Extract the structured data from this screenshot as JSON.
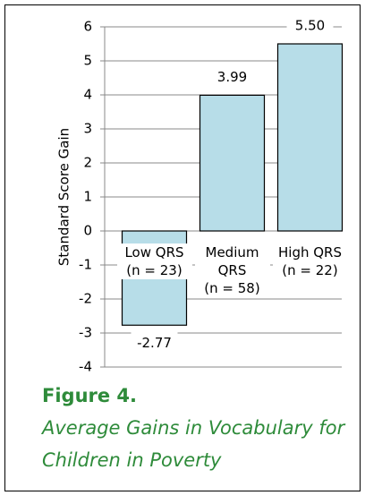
{
  "chart_data": {
    "type": "bar",
    "figure_label": "Figure 4.",
    "title": "Average Gains in Vocabulary for Children in Poverty",
    "y_label": "Standard Score Gain",
    "categories": [
      "Low QRS\n(n = 23)",
      "Medium\nQRS\n(n = 58)",
      "High QRS\n(n = 22)"
    ],
    "values": [
      -2.77,
      3.99,
      5.5
    ],
    "value_labels": [
      "-2.77",
      "3.99",
      "5.50"
    ],
    "color": "#b7dde8",
    "ylim": [
      -4,
      6
    ],
    "yticks": [
      -4,
      -3,
      -2,
      -1,
      0,
      1,
      2,
      3,
      4,
      5,
      6
    ],
    "grid": true
  }
}
